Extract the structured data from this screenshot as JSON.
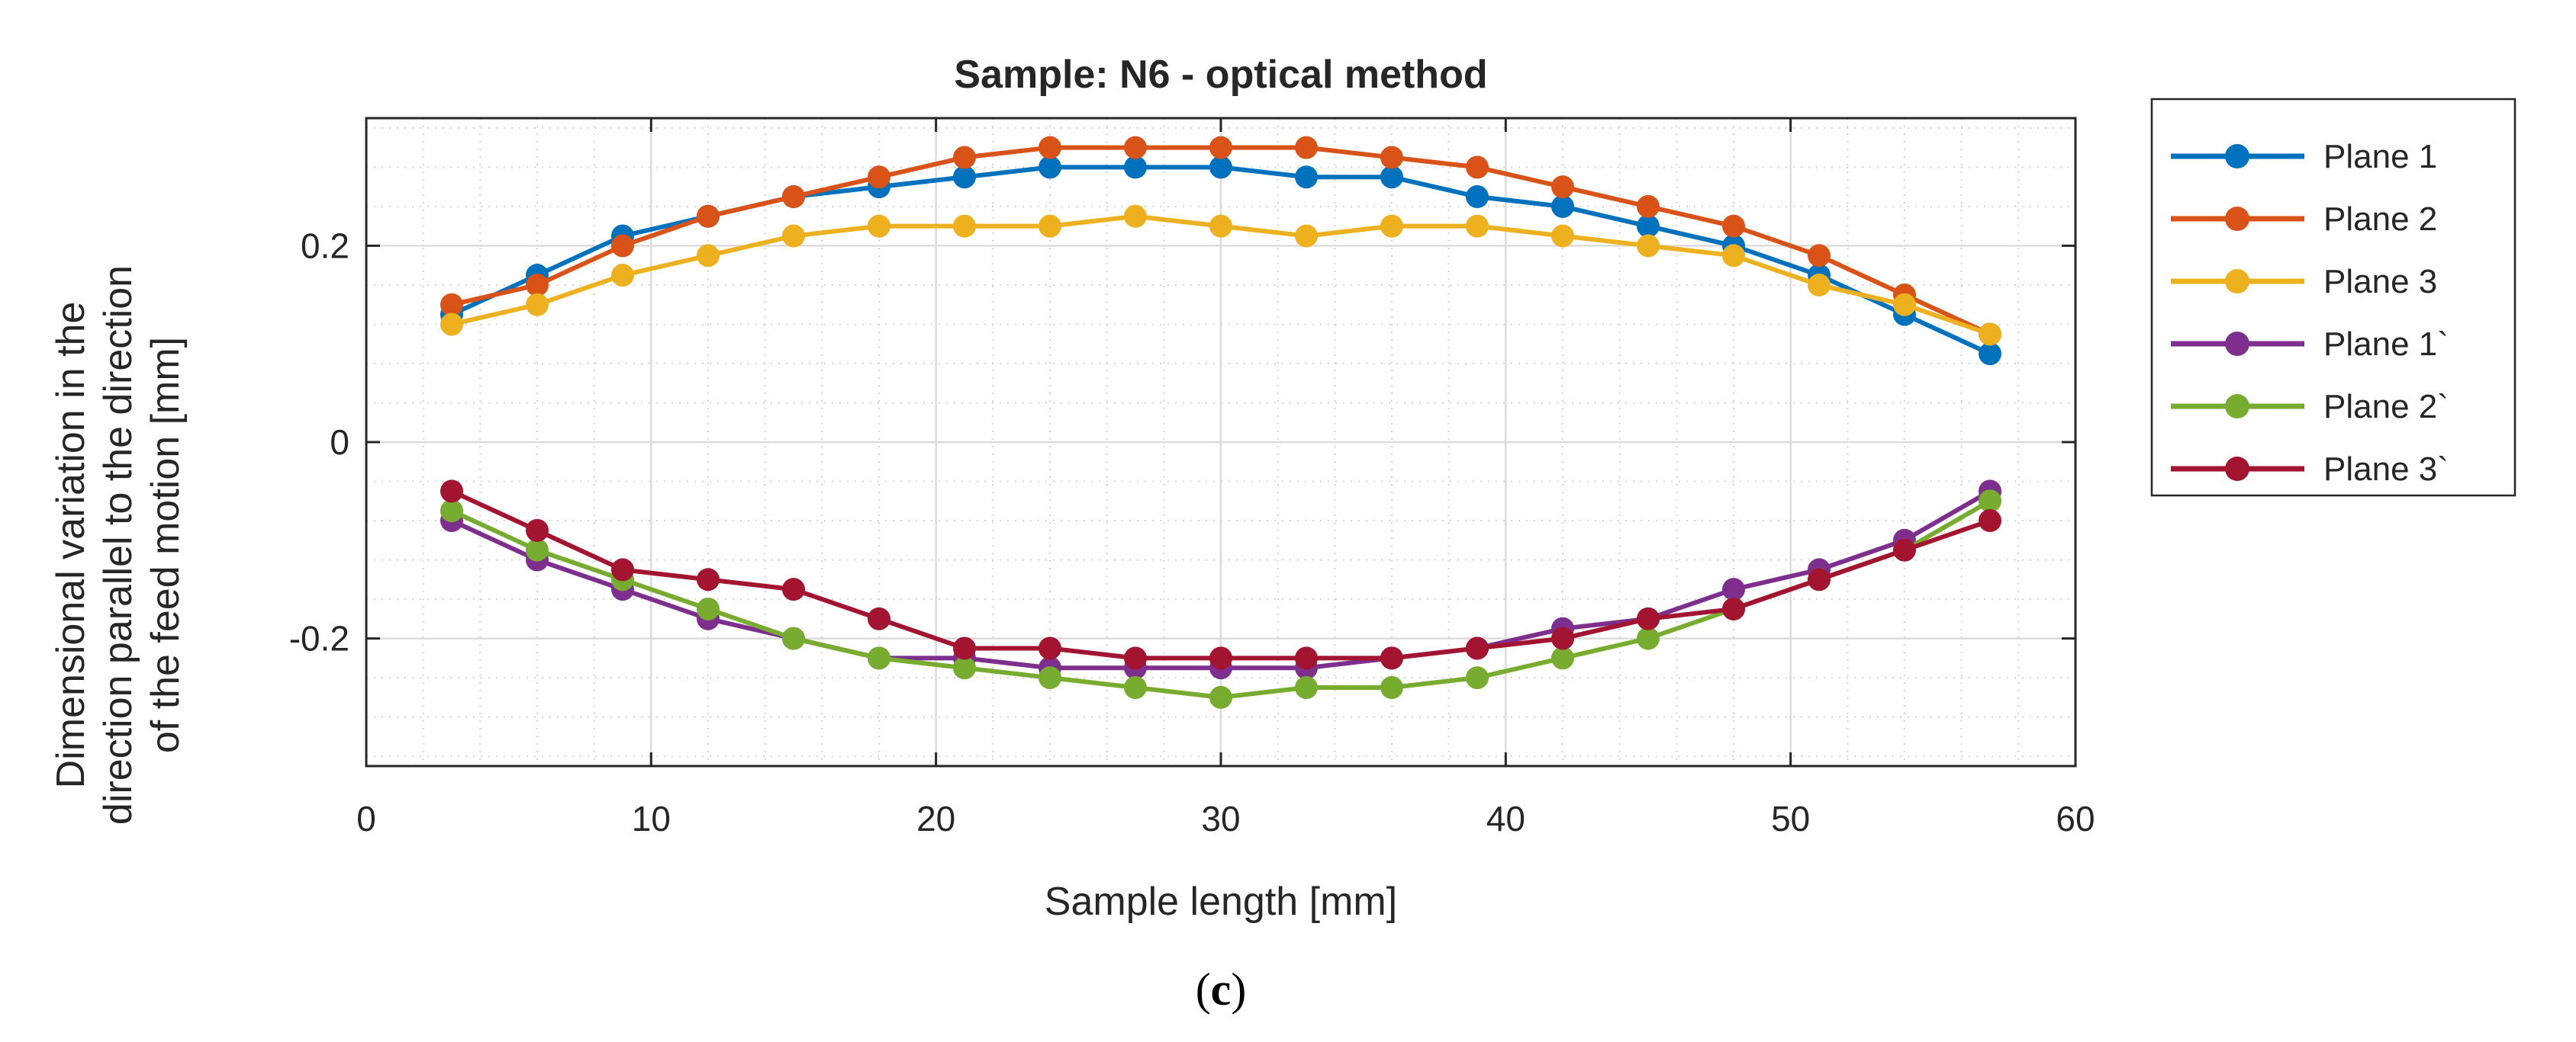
{
  "figure": {
    "caption_open": "(",
    "caption_letter": "c",
    "caption_close": ")"
  },
  "chart_data": {
    "type": "line",
    "title": "Sample: N6 - optical method",
    "xlabel": "Sample length [mm]",
    "ylabel_lines": [
      "Dimensional variation in the",
      "direction parallel to the direction",
      "of the feed motion [mm]"
    ],
    "xlim": [
      0,
      60
    ],
    "ylim": [
      -0.33,
      0.33
    ],
    "xticks": [
      0,
      10,
      20,
      30,
      40,
      50,
      60
    ],
    "xtick_labels": [
      "0",
      "10",
      "20",
      "30",
      "40",
      "50",
      "60"
    ],
    "yticks": [
      -0.2,
      0,
      0.2
    ],
    "ytick_labels": [
      "-0.2",
      "0",
      "0.2"
    ],
    "grid": true,
    "minor_grid": true,
    "legend_position": "outside-right-top",
    "x": [
      3,
      6,
      9,
      12,
      15,
      18,
      21,
      24,
      27,
      30,
      33,
      36,
      39,
      42,
      45,
      48,
      51,
      54,
      57
    ],
    "series": [
      {
        "name": "Plane 1",
        "color": "#0072BD",
        "values": [
          0.13,
          0.17,
          0.21,
          0.23,
          0.25,
          0.26,
          0.27,
          0.28,
          0.28,
          0.28,
          0.27,
          0.27,
          0.25,
          0.24,
          0.22,
          0.2,
          0.17,
          0.13,
          0.09
        ]
      },
      {
        "name": "Plane 2",
        "color": "#D95319",
        "values": [
          0.14,
          0.16,
          0.2,
          0.23,
          0.25,
          0.27,
          0.29,
          0.3,
          0.3,
          0.3,
          0.3,
          0.29,
          0.28,
          0.26,
          0.24,
          0.22,
          0.19,
          0.15,
          0.11
        ]
      },
      {
        "name": "Plane 3",
        "color": "#EDB120",
        "values": [
          0.12,
          0.14,
          0.17,
          0.19,
          0.21,
          0.22,
          0.22,
          0.22,
          0.23,
          0.22,
          0.21,
          0.22,
          0.22,
          0.21,
          0.2,
          0.19,
          0.16,
          0.14,
          0.11
        ]
      },
      {
        "name": "Plane 1`",
        "color": "#7E2F8E",
        "values": [
          -0.08,
          -0.12,
          -0.15,
          -0.18,
          -0.2,
          -0.22,
          -0.22,
          -0.23,
          -0.23,
          -0.23,
          -0.23,
          -0.22,
          -0.21,
          -0.19,
          -0.18,
          -0.15,
          -0.13,
          -0.1,
          -0.05
        ]
      },
      {
        "name": "Plane 2`",
        "color": "#77AC30",
        "values": [
          -0.07,
          -0.11,
          -0.14,
          -0.17,
          -0.2,
          -0.22,
          -0.23,
          -0.24,
          -0.25,
          -0.26,
          -0.25,
          -0.25,
          -0.24,
          -0.22,
          -0.2,
          -0.17,
          -0.14,
          -0.11,
          -0.06
        ]
      },
      {
        "name": "Plane 3`",
        "color": "#A2142F",
        "values": [
          -0.05,
          -0.09,
          -0.13,
          -0.14,
          -0.15,
          -0.18,
          -0.21,
          -0.21,
          -0.22,
          -0.22,
          -0.22,
          -0.22,
          -0.21,
          -0.2,
          -0.18,
          -0.17,
          -0.14,
          -0.11,
          -0.08
        ]
      }
    ]
  }
}
